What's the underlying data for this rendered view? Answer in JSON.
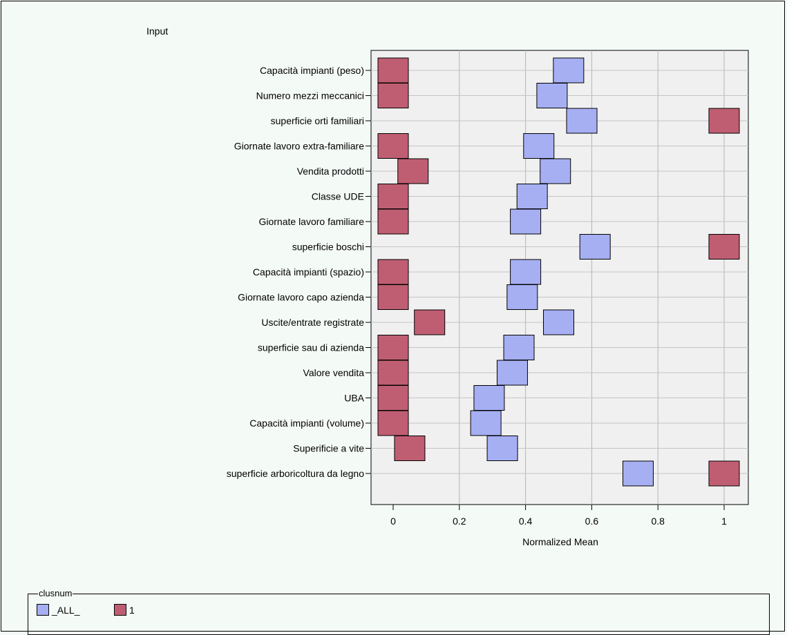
{
  "chart_data": {
    "type": "scatter",
    "title": "Input",
    "xlabel": "Normalized Mean",
    "xlim": [
      -0.05,
      1.07
    ],
    "xticks": [
      "0",
      "0.2",
      "0.4",
      "0.6",
      "0.8",
      "1"
    ],
    "xtick_values": [
      0,
      0.2,
      0.4,
      0.6,
      0.8,
      1
    ],
    "grid": true,
    "legend_title": "clusnum",
    "legend_position": "bottom",
    "categories": [
      "Capacità impianti (peso)",
      "Numero mezzi meccanici",
      "superficie orti familiari",
      "Giornate lavoro extra-familiare",
      "Vendita prodotti",
      "Classe  UDE",
      "Giornate lavoro familiare",
      "superficie boschi",
      "Capacità impianti (spazio)",
      "Giornate lavoro capo azienda",
      "Uscite/entrate registrate",
      "superficie sau di azienda",
      "Valore vendita",
      "UBA",
      "Capacità impianti (volume)",
      "Superificie a vite",
      "superficie arboricoltura da legno"
    ],
    "series": [
      {
        "name": "_ALL_",
        "color": "#a6aff2",
        "values": [
          0.53,
          0.48,
          0.57,
          0.44,
          0.49,
          0.42,
          0.4,
          0.61,
          0.4,
          0.39,
          0.5,
          0.38,
          0.36,
          0.29,
          0.28,
          0.33,
          0.74
        ]
      },
      {
        "name": "1",
        "color": "#bf5e72",
        "values": [
          0,
          0,
          1,
          0,
          0.06,
          0,
          0,
          1,
          0,
          0,
          0.11,
          0,
          0,
          0,
          0,
          0.05,
          1
        ]
      }
    ]
  }
}
